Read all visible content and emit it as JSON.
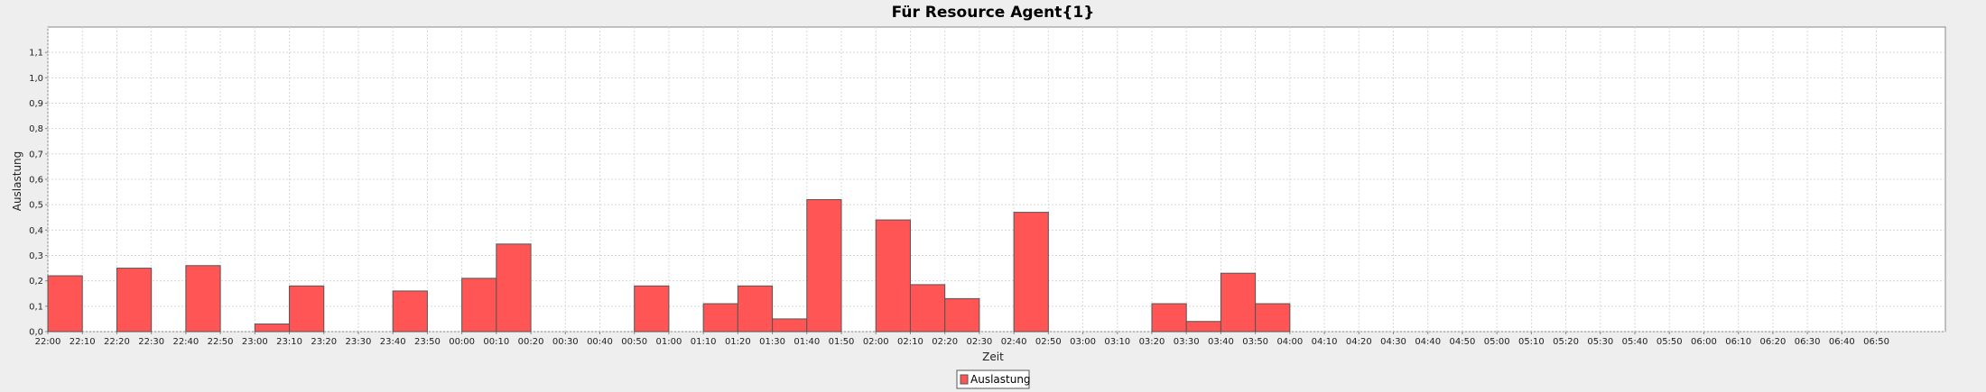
{
  "colors": {
    "background": "#eeeeee",
    "plot_background": "#ffffff",
    "bar_fill": "#ff5555",
    "bar_stroke": "#555555",
    "grid": "#d8d8d8",
    "axis": "#888888"
  },
  "chart_data": {
    "type": "bar",
    "title": "Für Resource Agent{1}",
    "xlabel": "Zeit",
    "ylabel": "Auslastung",
    "ylim": [
      0,
      1.2
    ],
    "y_ticks": [
      "0,0",
      "0,1",
      "0,2",
      "0,3",
      "0,4",
      "0,5",
      "0,6",
      "0,7",
      "0,8",
      "0,9",
      "1,0",
      "1,1"
    ],
    "x_ticks": [
      "22:00",
      "22:10",
      "22:20",
      "22:30",
      "22:40",
      "22:50",
      "23:00",
      "23:10",
      "23:20",
      "23:30",
      "23:40",
      "23:50",
      "00:00",
      "00:10",
      "00:20",
      "00:30",
      "00:40",
      "00:50",
      "01:00",
      "01:10",
      "01:20",
      "01:30",
      "01:40",
      "01:50",
      "02:00",
      "02:10",
      "02:20",
      "02:30",
      "02:40",
      "02:50",
      "03:00",
      "03:10",
      "03:20",
      "03:30",
      "03:40",
      "03:50",
      "04:00",
      "04:10",
      "04:20",
      "04:30",
      "04:40",
      "04:50",
      "05:00",
      "05:10",
      "05:20",
      "05:30",
      "05:40",
      "05:50",
      "06:00",
      "06:10",
      "06:20",
      "06:30",
      "06:40",
      "06:50"
    ],
    "grid": true,
    "legend_position": "bottom-center",
    "series": [
      {
        "name": "Auslastung",
        "bars": [
          {
            "start": "22:00",
            "end": "22:10",
            "value": 0.22
          },
          {
            "start": "22:20",
            "end": "22:30",
            "value": 0.25
          },
          {
            "start": "22:40",
            "end": "22:50",
            "value": 0.26
          },
          {
            "start": "23:00",
            "end": "23:10",
            "value": 0.03
          },
          {
            "start": "23:10",
            "end": "23:20",
            "value": 0.18
          },
          {
            "start": "23:40",
            "end": "23:50",
            "value": 0.16
          },
          {
            "start": "00:00",
            "end": "00:10",
            "value": 0.21
          },
          {
            "start": "00:10",
            "end": "00:20",
            "value": 0.345
          },
          {
            "start": "00:50",
            "end": "01:00",
            "value": 0.18
          },
          {
            "start": "01:10",
            "end": "01:20",
            "value": 0.11
          },
          {
            "start": "01:20",
            "end": "01:30",
            "value": 0.18
          },
          {
            "start": "01:30",
            "end": "01:40",
            "value": 0.05
          },
          {
            "start": "01:40",
            "end": "01:50",
            "value": 0.52
          },
          {
            "start": "02:00",
            "end": "02:10",
            "value": 0.44
          },
          {
            "start": "02:10",
            "end": "02:20",
            "value": 0.185
          },
          {
            "start": "02:20",
            "end": "02:30",
            "value": 0.13
          },
          {
            "start": "02:40",
            "end": "02:50",
            "value": 0.47
          },
          {
            "start": "03:20",
            "end": "03:30",
            "value": 0.11
          },
          {
            "start": "03:30",
            "end": "03:40",
            "value": 0.04
          },
          {
            "start": "03:40",
            "end": "03:50",
            "value": 0.23
          },
          {
            "start": "03:50",
            "end": "04:00",
            "value": 0.11
          }
        ]
      }
    ]
  }
}
